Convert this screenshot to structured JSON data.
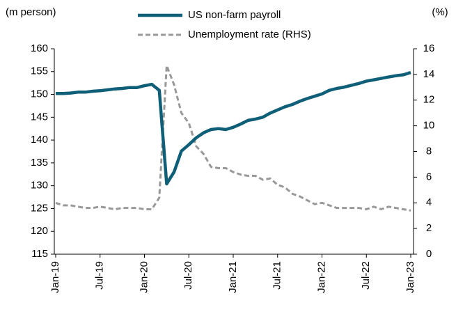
{
  "chart_data": {
    "type": "line",
    "y_label": "(m person)",
    "y2_label": "(%)",
    "categories": [
      "Jan-19",
      null,
      null,
      null,
      null,
      null,
      "Jul-19",
      null,
      null,
      null,
      null,
      null,
      "Jan-20",
      null,
      null,
      null,
      null,
      null,
      "Jul-20",
      null,
      null,
      null,
      null,
      null,
      "Jan-21",
      null,
      null,
      null,
      null,
      null,
      "Jul-21",
      null,
      null,
      null,
      null,
      null,
      "Jan-22",
      null,
      null,
      null,
      null,
      null,
      "Jul-22",
      null,
      null,
      null,
      null,
      null,
      "Jan-23"
    ],
    "series": [
      {
        "name": "US non-farm payroll",
        "color": "#0f5f78",
        "dash": false,
        "axis": "y",
        "values": [
          150.2,
          150.2,
          150.3,
          150.5,
          150.5,
          150.7,
          150.8,
          151.0,
          151.2,
          151.3,
          151.5,
          151.5,
          151.9,
          152.2,
          150.9,
          130.4,
          133.0,
          137.6,
          139.0,
          140.5,
          141.6,
          142.3,
          142.5,
          142.3,
          142.8,
          143.5,
          144.3,
          144.6,
          145.0,
          145.9,
          146.6,
          147.3,
          147.8,
          148.5,
          149.1,
          149.6,
          150.1,
          150.9,
          151.3,
          151.6,
          152.0,
          152.4,
          152.9,
          153.2,
          153.5,
          153.8,
          154.1,
          154.3,
          154.8
        ]
      },
      {
        "name": "Unemployment rate (RHS)",
        "color": "#999999",
        "dash": true,
        "axis": "y2",
        "values": [
          4.0,
          3.8,
          3.8,
          3.7,
          3.6,
          3.6,
          3.7,
          3.6,
          3.5,
          3.6,
          3.6,
          3.6,
          3.5,
          3.5,
          4.4,
          14.7,
          13.2,
          11.0,
          10.2,
          8.4,
          7.8,
          6.8,
          6.7,
          6.7,
          6.4,
          6.2,
          6.1,
          6.1,
          5.8,
          5.9,
          5.4,
          5.2,
          4.7,
          4.5,
          4.2,
          3.9,
          4.0,
          3.8,
          3.6,
          3.6,
          3.6,
          3.6,
          3.5,
          3.7,
          3.5,
          3.7,
          3.6,
          3.5,
          3.4
        ]
      }
    ],
    "ylim": [
      115,
      160
    ],
    "yticks": [
      115,
      120,
      125,
      130,
      135,
      140,
      145,
      150,
      155,
      160
    ],
    "y2lim": [
      0,
      16
    ],
    "y2ticks": [
      0,
      2,
      4,
      6,
      8,
      10,
      12,
      14,
      16
    ],
    "grid": false
  }
}
